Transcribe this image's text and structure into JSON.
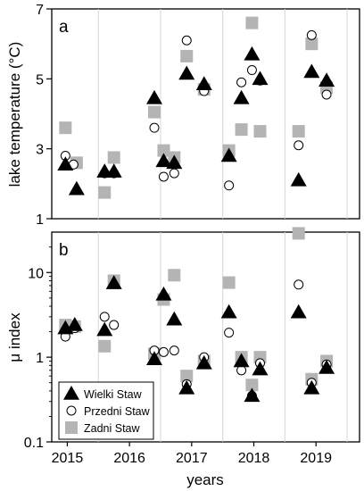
{
  "chart_data": [
    {
      "panel": "a",
      "type": "scatter",
      "ylabel": "lake temperature (°C)",
      "yscale": "linear",
      "ylim": [
        1,
        7
      ],
      "yticks": [
        1,
        3,
        5,
        7
      ],
      "xlim": [
        2014.75,
        2019.7
      ],
      "grid": "vertical lines between years",
      "series": [
        {
          "name": "Wielki Staw",
          "marker": "triangle",
          "color": "#000000",
          "points": [
            [
              2014.97,
              2.55
            ],
            [
              2015.15,
              1.85
            ],
            [
              2015.6,
              2.35
            ],
            [
              2015.75,
              2.35
            ],
            [
              2016.4,
              4.45
            ],
            [
              2016.55,
              2.65
            ],
            [
              2016.72,
              2.6
            ],
            [
              2016.92,
              5.15
            ],
            [
              2017.2,
              4.85
            ],
            [
              2017.6,
              2.8
            ],
            [
              2017.8,
              4.45
            ],
            [
              2017.97,
              5.7
            ],
            [
              2018.1,
              5.0
            ],
            [
              2018.72,
              2.1
            ],
            [
              2018.93,
              5.2
            ],
            [
              2019.17,
              4.95
            ]
          ]
        },
        {
          "name": "Przedni Staw",
          "marker": "circle",
          "color": "#000000",
          "points": [
            [
              2014.97,
              2.8
            ],
            [
              2015.1,
              2.55
            ],
            [
              2015.6,
              2.3
            ],
            [
              2015.75,
              2.3
            ],
            [
              2016.4,
              3.6
            ],
            [
              2016.55,
              2.2
            ],
            [
              2016.72,
              2.3
            ],
            [
              2016.92,
              6.1
            ],
            [
              2017.2,
              4.65
            ],
            [
              2017.6,
              1.95
            ],
            [
              2017.8,
              4.9
            ],
            [
              2017.97,
              5.25
            ],
            [
              2018.1,
              4.95
            ],
            [
              2018.72,
              3.1
            ],
            [
              2018.93,
              6.25
            ],
            [
              2019.17,
              4.55
            ]
          ]
        },
        {
          "name": "Zadni Staw",
          "marker": "square",
          "color": "#b4b4b4",
          "points": [
            [
              2014.97,
              3.6
            ],
            [
              2015.15,
              2.6
            ],
            [
              2015.6,
              1.75
            ],
            [
              2015.75,
              2.75
            ],
            [
              2016.4,
              4.05
            ],
            [
              2016.55,
              2.95
            ],
            [
              2016.72,
              2.75
            ],
            [
              2016.92,
              5.65
            ],
            [
              2017.2,
              4.7
            ],
            [
              2017.6,
              2.95
            ],
            [
              2017.8,
              3.55
            ],
            [
              2017.97,
              6.6
            ],
            [
              2018.1,
              3.5
            ],
            [
              2018.72,
              3.5
            ],
            [
              2018.93,
              6.0
            ],
            [
              2019.17,
              4.75
            ]
          ]
        }
      ]
    },
    {
      "panel": "b",
      "type": "scatter",
      "ylabel": "μ index",
      "xlabel": "years",
      "yscale": "log",
      "ylim": [
        0.1,
        30
      ],
      "yticks": [
        0.1,
        1,
        10
      ],
      "xlim": [
        2014.75,
        2019.7
      ],
      "xticks": [
        2015,
        2016,
        2017,
        2018,
        2019
      ],
      "legend": "bottom-left",
      "series": [
        {
          "name": "Wielki Staw",
          "marker": "triangle",
          "color": "#000000",
          "points": [
            [
              2014.97,
              2.2
            ],
            [
              2015.12,
              2.4
            ],
            [
              2015.6,
              2.1
            ],
            [
              2015.75,
              7.5
            ],
            [
              2016.4,
              0.95
            ],
            [
              2016.55,
              5.5
            ],
            [
              2016.72,
              2.8
            ],
            [
              2016.92,
              0.43
            ],
            [
              2017.2,
              0.85
            ],
            [
              2017.6,
              3.4
            ],
            [
              2017.8,
              0.9
            ],
            [
              2017.97,
              0.35
            ],
            [
              2018.1,
              0.72
            ],
            [
              2018.72,
              3.4
            ],
            [
              2018.93,
              0.43
            ],
            [
              2019.17,
              0.75
            ]
          ]
        },
        {
          "name": "Przedni Staw",
          "marker": "circle",
          "color": "#000000",
          "points": [
            [
              2014.97,
              1.75
            ],
            [
              2015.12,
              2.2
            ],
            [
              2015.6,
              3.0
            ],
            [
              2015.75,
              2.4
            ],
            [
              2016.4,
              1.2
            ],
            [
              2016.55,
              1.15
            ],
            [
              2016.72,
              1.2
            ],
            [
              2016.92,
              0.48
            ],
            [
              2017.2,
              1.0
            ],
            [
              2017.6,
              1.95
            ],
            [
              2017.8,
              0.7
            ],
            [
              2017.97,
              0.35
            ],
            [
              2018.1,
              0.85
            ],
            [
              2018.72,
              7.2
            ],
            [
              2018.93,
              0.5
            ],
            [
              2019.17,
              0.82
            ]
          ]
        },
        {
          "name": "Zadni Staw",
          "marker": "square",
          "color": "#b4b4b4",
          "points": [
            [
              2014.97,
              2.4
            ],
            [
              2015.12,
              2.3
            ],
            [
              2015.6,
              1.35
            ],
            [
              2015.75,
              8.0
            ],
            [
              2016.4,
              1.1
            ],
            [
              2016.55,
              4.8
            ],
            [
              2016.72,
              9.3
            ],
            [
              2016.92,
              0.6
            ],
            [
              2017.2,
              0.9
            ],
            [
              2017.6,
              7.6
            ],
            [
              2017.8,
              1.0
            ],
            [
              2017.97,
              0.47
            ],
            [
              2018.1,
              1.0
            ],
            [
              2018.72,
              29.0
            ],
            [
              2018.93,
              0.55
            ],
            [
              2019.17,
              0.9
            ]
          ]
        }
      ]
    }
  ]
}
